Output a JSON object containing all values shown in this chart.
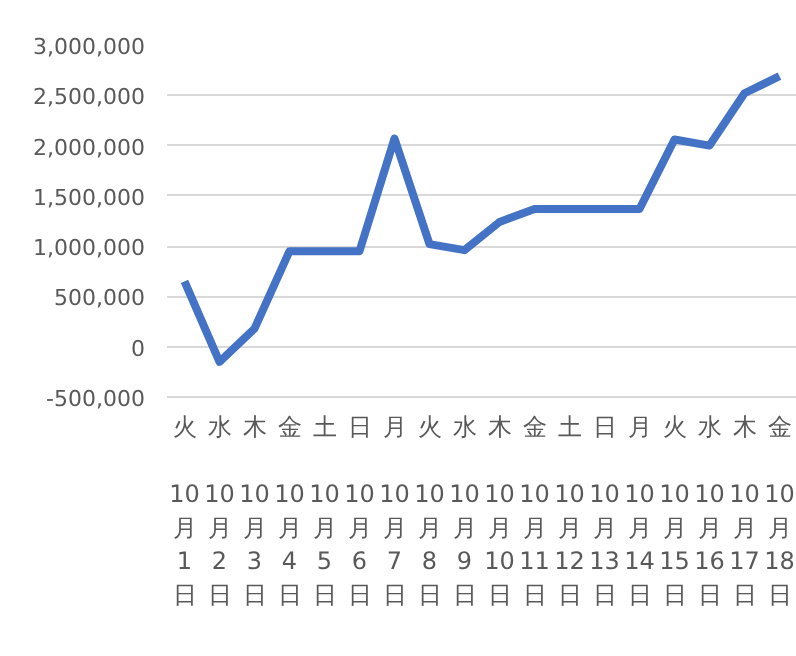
{
  "chart_data": {
    "type": "line",
    "categories": [
      "火 10月1日",
      "水 10月2日",
      "木 10月3日",
      "金 10月4日",
      "土 10月5日",
      "日 10月6日",
      "月 10月7日",
      "火 10月8日",
      "水 10月9日",
      "木 10月10日",
      "金 10月11日",
      "土 10月12日",
      "日 10月13日",
      "月 10月14日",
      "火 10月15日",
      "水 10月16日",
      "木 10月17日",
      "金 10月18日"
    ],
    "series": [
      {
        "color": "#4472c4",
        "values": [
          650000,
          -150000,
          180000,
          950000,
          950000,
          950000,
          2070000,
          1020000,
          960000,
          1240000,
          1370000,
          1370000,
          1370000,
          1370000,
          2060000,
          2000000,
          2520000,
          2690000
        ]
      }
    ],
    "ylim": [
      -500000,
      3000000
    ],
    "yticks": [
      {
        "value": -500000,
        "label": "-500,000"
      },
      {
        "value": 0,
        "label": "0"
      },
      {
        "value": 500000,
        "label": "500,000"
      },
      {
        "value": 1000000,
        "label": "1,000,000"
      },
      {
        "value": 1500000,
        "label": "1,500,000"
      },
      {
        "value": 2000000,
        "label": "2,000,000"
      },
      {
        "value": 2500000,
        "label": "2,500,000"
      },
      {
        "value": 3000000,
        "label": "3,000,000"
      }
    ],
    "grid": "y",
    "marker": "none",
    "line_style": "solid"
  }
}
